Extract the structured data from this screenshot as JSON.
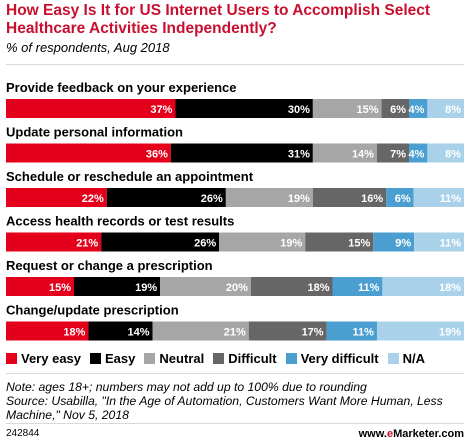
{
  "header": {
    "title": "How Easy Is It for US Internet Users to Accomplish Select Healthcare Activities Independently?",
    "subtitle": "% of respondents, Aug 2018"
  },
  "chart_data": {
    "type": "bar",
    "orientation": "horizontal",
    "stacked": true,
    "categories": [
      "Provide feedback on your experience",
      "Update personal information",
      "Schedule or reschedule an appointment",
      "Access health records or test results",
      "Request or change a prescription",
      "Change/update prescription"
    ],
    "series": [
      {
        "name": "Very easy",
        "color": "#e4001b",
        "values": [
          37,
          36,
          22,
          21,
          15,
          18
        ]
      },
      {
        "name": "Easy",
        "color": "#000000",
        "values": [
          30,
          31,
          26,
          26,
          19,
          14
        ]
      },
      {
        "name": "Neutral",
        "color": "#a6a6a6",
        "values": [
          15,
          14,
          19,
          19,
          20,
          21
        ]
      },
      {
        "name": "Difficult",
        "color": "#666666",
        "values": [
          6,
          7,
          16,
          15,
          18,
          17
        ]
      },
      {
        "name": "Very difficult",
        "color": "#4a9fd0",
        "values": [
          4,
          4,
          6,
          9,
          11,
          11
        ]
      },
      {
        "name": "N/A",
        "color": "#a9d2ea",
        "values": [
          8,
          8,
          11,
          11,
          18,
          19
        ]
      }
    ],
    "value_suffix": "%",
    "legend_position": "bottom",
    "grid": false
  },
  "notes": {
    "note": "Note: ages 18+; numbers may not add up to 100% due to rounding",
    "source": "Source: Usabilla, \"In the Age of Automation, Customers Want More Human, Less Machine,\" Nov 5, 2018"
  },
  "footer": {
    "id": "242844",
    "brand_prefix": "www.",
    "brand_e": "e",
    "brand_suffix": "Marketer.com"
  }
}
